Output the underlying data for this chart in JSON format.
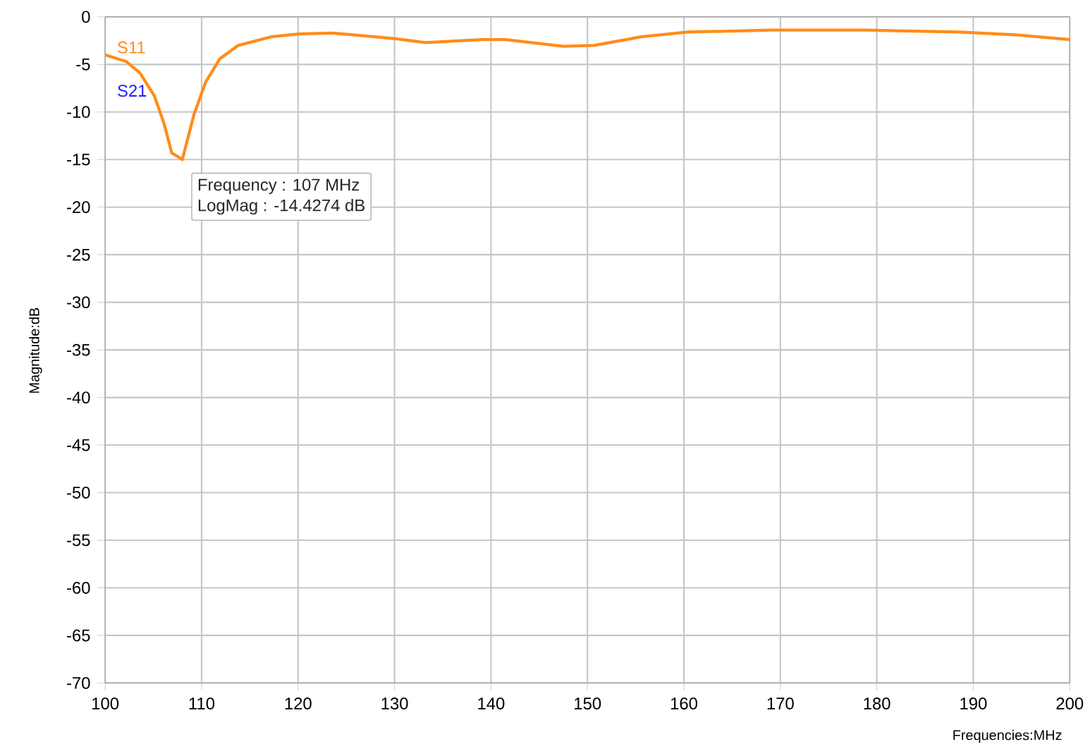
{
  "chart_data": {
    "type": "line",
    "xlabel": "Frequencies:MHz",
    "ylabel": "Magnitude:dB",
    "x": [
      100,
      102.2,
      103.6,
      105.1,
      106.1,
      106.9,
      108.0,
      109.2,
      110.4,
      111.9,
      113.8,
      117.2,
      120.1,
      123.5,
      126.9,
      130.1,
      133.2,
      139.1,
      141.5,
      147.5,
      150.7,
      155.6,
      160.4,
      169.1,
      178.8,
      188.5,
      194.4,
      200
    ],
    "series": [
      {
        "name": "S11",
        "color": "#ff8c1a",
        "values": [
          -4.0,
          -4.7,
          -5.9,
          -8.3,
          -11.2,
          -14.3,
          -15.0,
          -10.3,
          -6.9,
          -4.4,
          -3.0,
          -2.1,
          -1.8,
          -1.7,
          -2.0,
          -2.3,
          -2.7,
          -2.4,
          -2.4,
          -3.1,
          -3.0,
          -2.1,
          -1.6,
          -1.4,
          -1.4,
          -1.6,
          -1.9,
          -2.4
        ]
      },
      {
        "name": "S21",
        "color": "#2020ff",
        "values": [
          null,
          null,
          null,
          null,
          null,
          null,
          null,
          null,
          null,
          null,
          null,
          null,
          null,
          null,
          null,
          null,
          null,
          null,
          null,
          null,
          null,
          null,
          null,
          null,
          null,
          null,
          null,
          null
        ]
      }
    ],
    "annotations": [
      {
        "text": "Frequency : 107 MHz",
        "x": 107,
        "y": -14.4274
      },
      "LogMag : -14.4274 dB"
    ],
    "xlim": [
      100,
      200
    ],
    "ylim": [
      -70,
      0
    ],
    "xticks": [
      100,
      110,
      120,
      130,
      140,
      150,
      160,
      170,
      180,
      190,
      200
    ],
    "yticks": [
      0,
      -5,
      -10,
      -15,
      -20,
      -25,
      -30,
      -35,
      -40,
      -45,
      -50,
      -55,
      -60,
      -65,
      -70
    ],
    "grid": true,
    "legend": "top left",
    "marker": "none",
    "line_style": "solid"
  }
}
